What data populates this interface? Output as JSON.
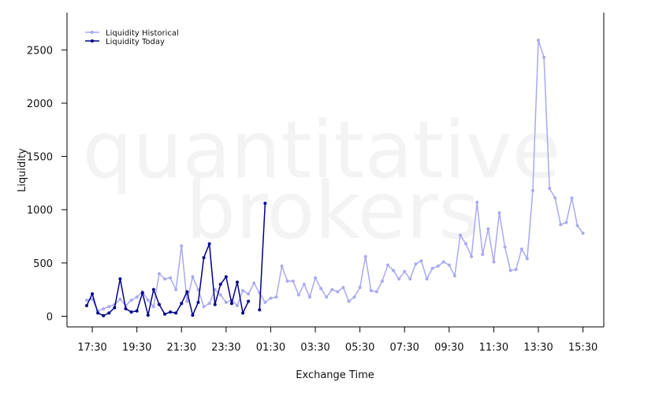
{
  "chart_data": {
    "type": "line",
    "watermark": [
      "quantitative",
      "brokers"
    ],
    "x_label": "Exchange Time",
    "y_label": "Liquidity",
    "x": [
      "17:15",
      "17:30",
      "17:45",
      "18:00",
      "18:15",
      "18:30",
      "18:45",
      "19:00",
      "19:15",
      "19:30",
      "19:45",
      "20:00",
      "20:15",
      "20:30",
      "20:45",
      "21:00",
      "21:15",
      "21:30",
      "21:45",
      "22:00",
      "22:15",
      "22:30",
      "22:45",
      "23:00",
      "23:15",
      "23:30",
      "23:45",
      "00:00",
      "00:15",
      "00:30",
      "00:45",
      "01:00",
      "01:15",
      "01:30",
      "01:45",
      "02:00",
      "02:15",
      "02:30",
      "02:45",
      "03:00",
      "03:15",
      "03:30",
      "03:45",
      "04:00",
      "04:15",
      "04:30",
      "04:45",
      "05:00",
      "05:15",
      "05:30",
      "05:45",
      "06:00",
      "06:15",
      "06:30",
      "06:45",
      "07:00",
      "07:15",
      "07:30",
      "07:45",
      "08:00",
      "08:15",
      "08:30",
      "08:45",
      "09:00",
      "09:15",
      "09:30",
      "09:45",
      "10:00",
      "10:15",
      "10:30",
      "10:45",
      "11:00",
      "11:15",
      "11:30",
      "11:45",
      "12:00",
      "12:15",
      "12:30",
      "12:45",
      "13:00",
      "13:15",
      "13:30",
      "13:45",
      "14:00",
      "14:15",
      "14:30",
      "14:45",
      "15:00",
      "15:15",
      "15:30"
    ],
    "xlim": [
      "16:22",
      "16:26"
    ],
    "xticks": [
      "17:30",
      "19:30",
      "21:30",
      "23:30",
      "01:30",
      "03:30",
      "05:30",
      "07:30",
      "09:30",
      "11:30",
      "13:30",
      "15:30"
    ],
    "ylim": [
      -100,
      2850
    ],
    "yticks": [
      0,
      500,
      1000,
      1500,
      2000,
      2500
    ],
    "series": [
      {
        "name": "Liquidity Historical",
        "color": "#a9a9f2",
        "values": [
          150,
          160,
          50,
          70,
          90,
          110,
          160,
          100,
          150,
          180,
          230,
          150,
          90,
          400,
          350,
          360,
          250,
          660,
          140,
          370,
          250,
          90,
          120,
          250,
          200,
          130,
          150,
          100,
          240,
          210,
          310,
          220,
          130,
          170,
          180,
          470,
          330,
          330,
          200,
          300,
          180,
          360,
          260,
          180,
          250,
          230,
          270,
          140,
          180,
          270,
          560,
          240,
          230,
          330,
          480,
          430,
          350,
          420,
          350,
          490,
          520,
          350,
          450,
          470,
          510,
          480,
          380,
          760,
          680,
          560,
          1070,
          580,
          820,
          510,
          970,
          650,
          430,
          440,
          630,
          540,
          1180,
          2590,
          2430,
          1200,
          1110,
          860,
          880,
          1110,
          850,
          780
        ]
      },
      {
        "name": "Liquidity Today",
        "color": "#00008b",
        "values": [
          100,
          210,
          30,
          5,
          30,
          80,
          350,
          70,
          40,
          50,
          220,
          10,
          250,
          110,
          20,
          40,
          30,
          120,
          230,
          10,
          130,
          550,
          680,
          110,
          300,
          370,
          120,
          320,
          30,
          140,
          null,
          60,
          1060,
          null,
          null,
          null,
          null,
          null,
          null,
          null,
          null,
          null,
          null,
          null,
          null,
          null,
          null,
          null,
          null,
          null,
          null,
          null,
          null,
          null,
          null,
          null,
          null,
          null,
          null,
          null,
          null,
          null,
          null,
          null,
          null,
          null,
          null,
          null,
          null,
          null,
          null,
          null,
          null,
          null,
          null,
          null,
          null,
          null,
          null,
          null,
          null,
          null,
          null,
          null,
          null,
          null,
          null,
          null,
          null,
          null
        ]
      }
    ]
  }
}
